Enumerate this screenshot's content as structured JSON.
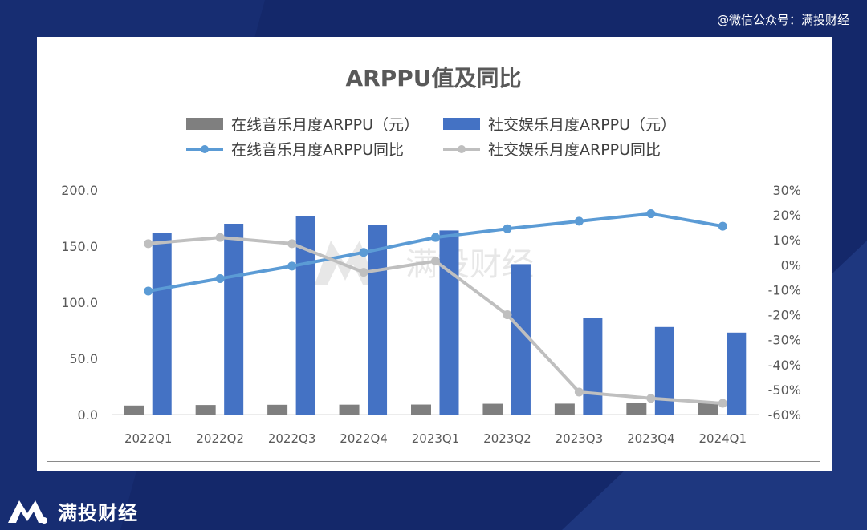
{
  "watermark": "@微信公众号：满投财经",
  "brand": {
    "name": "满投财经"
  },
  "chart_data": {
    "type": "bar",
    "title": "ARPPU值及同比",
    "categories": [
      "2022Q1",
      "2022Q2",
      "2022Q3",
      "2022Q4",
      "2023Q1",
      "2023Q2",
      "2023Q3",
      "2023Q4",
      "2024Q1"
    ],
    "series": [
      {
        "name": "在线音乐月度ARPPU（元）",
        "type": "bar",
        "axis": "left",
        "color": "#7f7f7f",
        "values": [
          8.0,
          8.5,
          8.7,
          8.8,
          8.9,
          9.6,
          9.7,
          10.7,
          10.6
        ]
      },
      {
        "name": "社交娱乐月度ARPPU（元）",
        "type": "bar",
        "axis": "left",
        "color": "#4472c4",
        "values": [
          162.0,
          170.0,
          177.0,
          169.0,
          164.0,
          134.0,
          86.0,
          78.0,
          73.0
        ]
      },
      {
        "name": "在线音乐月度ARPPU同比",
        "type": "line",
        "axis": "right",
        "color": "#5b9bd5",
        "values": [
          -10.5,
          -5.5,
          -0.5,
          5.0,
          11.0,
          14.5,
          17.5,
          20.5,
          15.5
        ]
      },
      {
        "name": "社交娱乐月度ARPPU同比",
        "type": "line",
        "axis": "right",
        "color": "#bfbfbf",
        "values": [
          8.5,
          11.0,
          8.5,
          -3.0,
          1.5,
          -20.0,
          -51.0,
          -53.5,
          -55.5
        ]
      }
    ],
    "y_left": {
      "min": 0,
      "max": 200,
      "ticks": [
        "0.0",
        "50.0",
        "100.0",
        "150.0",
        "200.0"
      ]
    },
    "y_right": {
      "min": -60,
      "max": 30,
      "ticks": [
        "-60%",
        "-50%",
        "-40%",
        "-30%",
        "-20%",
        "-10%",
        "0%",
        "10%",
        "20%",
        "30%"
      ]
    },
    "grid": false,
    "legend_position": "top"
  }
}
